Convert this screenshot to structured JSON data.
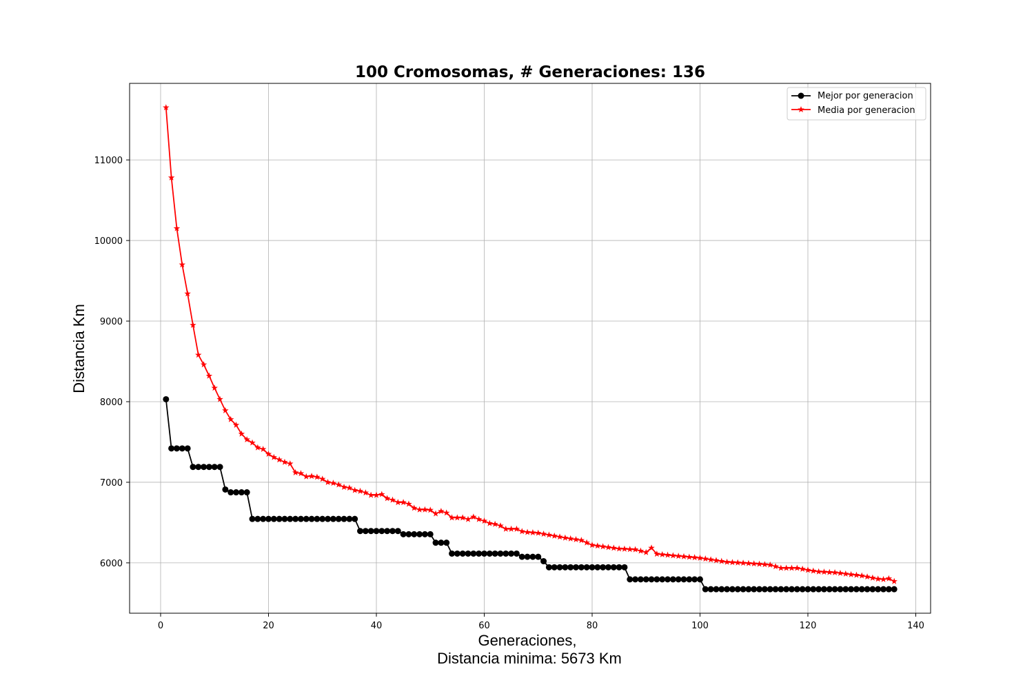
{
  "chart_data": {
    "type": "line",
    "title": "100 Cromosomas, # Generaciones: 136",
    "xlabel_line1": "Generaciones,",
    "xlabel_line2": "Distancia minima: 5673 Km",
    "ylabel": "Distancia Km",
    "xlim": [
      -5.75,
      142.75
    ],
    "ylim": [
      5375,
      11950
    ],
    "xticks": [
      0,
      20,
      40,
      60,
      80,
      100,
      120,
      140
    ],
    "yticks": [
      6000,
      7000,
      8000,
      9000,
      10000,
      11000
    ],
    "grid": true,
    "legend_position": "top-right",
    "series": [
      {
        "name": "Mejor por generacion",
        "color": "#000000",
        "marker": "circle",
        "segments": [
          {
            "from": 1,
            "to": 1,
            "value": 8030
          },
          {
            "from": 2,
            "to": 5,
            "value": 7420
          },
          {
            "from": 6,
            "to": 11,
            "value": 7190
          },
          {
            "from": 12,
            "to": 12,
            "value": 6910
          },
          {
            "from": 13,
            "to": 16,
            "value": 6875
          },
          {
            "from": 17,
            "to": 36,
            "value": 6545
          },
          {
            "from": 37,
            "to": 44,
            "value": 6395
          },
          {
            "from": 45,
            "to": 50,
            "value": 6355
          },
          {
            "from": 51,
            "to": 53,
            "value": 6250
          },
          {
            "from": 54,
            "to": 66,
            "value": 6115
          },
          {
            "from": 67,
            "to": 70,
            "value": 6075
          },
          {
            "from": 71,
            "to": 71,
            "value": 6020
          },
          {
            "from": 72,
            "to": 86,
            "value": 5945
          },
          {
            "from": 87,
            "to": 100,
            "value": 5795
          },
          {
            "from": 101,
            "to": 136,
            "value": 5673
          }
        ]
      },
      {
        "name": "Media por generacion",
        "color": "#ff0000",
        "marker": "star",
        "anchors": [
          [
            1,
            11650
          ],
          [
            2,
            10780
          ],
          [
            3,
            10150
          ],
          [
            4,
            9700
          ],
          [
            5,
            9340
          ],
          [
            6,
            8950
          ],
          [
            7,
            8580
          ],
          [
            8,
            8460
          ],
          [
            9,
            8320
          ],
          [
            10,
            8170
          ],
          [
            11,
            8030
          ],
          [
            12,
            7890
          ],
          [
            13,
            7780
          ],
          [
            14,
            7710
          ],
          [
            15,
            7600
          ],
          [
            16,
            7530
          ],
          [
            17,
            7490
          ],
          [
            18,
            7430
          ],
          [
            19,
            7410
          ],
          [
            20,
            7350
          ],
          [
            21,
            7310
          ],
          [
            22,
            7280
          ],
          [
            23,
            7250
          ],
          [
            24,
            7230
          ],
          [
            25,
            7120
          ],
          [
            26,
            7110
          ],
          [
            27,
            7070
          ],
          [
            28,
            7075
          ],
          [
            29,
            7065
          ],
          [
            30,
            7040
          ],
          [
            31,
            7000
          ],
          [
            32,
            6990
          ],
          [
            33,
            6970
          ],
          [
            34,
            6940
          ],
          [
            35,
            6930
          ],
          [
            36,
            6900
          ],
          [
            37,
            6890
          ],
          [
            38,
            6870
          ],
          [
            39,
            6840
          ],
          [
            40,
            6840
          ],
          [
            41,
            6850
          ],
          [
            42,
            6800
          ],
          [
            43,
            6780
          ],
          [
            44,
            6750
          ],
          [
            45,
            6750
          ],
          [
            46,
            6730
          ],
          [
            47,
            6680
          ],
          [
            48,
            6660
          ],
          [
            49,
            6660
          ],
          [
            50,
            6655
          ],
          [
            51,
            6610
          ],
          [
            52,
            6640
          ],
          [
            53,
            6620
          ],
          [
            54,
            6560
          ],
          [
            55,
            6560
          ],
          [
            56,
            6560
          ],
          [
            57,
            6540
          ],
          [
            58,
            6570
          ],
          [
            59,
            6540
          ],
          [
            60,
            6520
          ],
          [
            61,
            6490
          ],
          [
            62,
            6480
          ],
          [
            63,
            6460
          ],
          [
            64,
            6420
          ],
          [
            65,
            6420
          ],
          [
            66,
            6420
          ],
          [
            67,
            6390
          ],
          [
            68,
            6380
          ],
          [
            69,
            6375
          ],
          [
            70,
            6370
          ],
          [
            75,
            6310
          ],
          [
            78,
            6280
          ],
          [
            80,
            6220
          ],
          [
            85,
            6175
          ],
          [
            88,
            6165
          ],
          [
            90,
            6130
          ],
          [
            91,
            6185
          ],
          [
            92,
            6110
          ],
          [
            95,
            6090
          ],
          [
            100,
            6060
          ],
          [
            105,
            6010
          ],
          [
            110,
            5990
          ],
          [
            113,
            5975
          ],
          [
            115,
            5935
          ],
          [
            118,
            5935
          ],
          [
            120,
            5910
          ],
          [
            122,
            5890
          ],
          [
            125,
            5880
          ],
          [
            128,
            5855
          ],
          [
            130,
            5840
          ],
          [
            133,
            5800
          ],
          [
            134,
            5795
          ],
          [
            135,
            5805
          ],
          [
            136,
            5770
          ]
        ]
      }
    ]
  }
}
